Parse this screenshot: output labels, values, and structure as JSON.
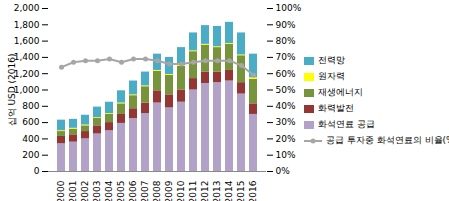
{
  "chart_data": {
    "type": "bar",
    "stacked": true,
    "legend": "right",
    "y_label": "십억 USD (2016)",
    "categories": [
      "2000",
      "2001",
      "2002",
      "2003",
      "2004",
      "2005",
      "2006",
      "2007",
      "2008",
      "2009",
      "2010",
      "2011",
      "2012",
      "2013",
      "2014",
      "2015",
      "2016"
    ],
    "ylim": [
      0,
      2000
    ],
    "yticks": [
      0,
      200,
      400,
      600,
      800,
      {
        "value": 1000,
        "label": "1,000"
      },
      {
        "value": 1200,
        "label": "1,200"
      },
      {
        "value": 1400,
        "label": "1,400"
      },
      {
        "value": 1600,
        "label": "1,600"
      },
      {
        "value": 1800,
        "label": "1,800"
      },
      {
        "value": 2000,
        "label": "2,000"
      }
    ],
    "y2lim": [
      0,
      100
    ],
    "y2ticks": [
      {
        "value": 0,
        "label": "0%"
      },
      {
        "value": 10,
        "label": "10%"
      },
      {
        "value": 20,
        "label": "20%"
      },
      {
        "value": 30,
        "label": "30%"
      },
      {
        "value": 40,
        "label": "40%"
      },
      {
        "value": 50,
        "label": "50%"
      },
      {
        "value": 60,
        "label": "60%"
      },
      {
        "value": 70,
        "label": "70%"
      },
      {
        "value": 80,
        "label": "80%"
      },
      {
        "value": 90,
        "label": "90%"
      },
      {
        "value": 100,
        "label": "100%"
      }
    ],
    "series": [
      {
        "name": "화석연료 공급",
        "type": "bar",
        "color": "#b3a2c7",
        "values": [
          340,
          360,
          400,
          460,
          500,
          590,
          650,
          710,
          840,
          780,
          850,
          1000,
          1080,
          1090,
          1110,
          950,
          700
        ]
      },
      {
        "name": "화력발전",
        "type": "bar",
        "color": "#943634",
        "values": [
          90,
          90,
          90,
          100,
          100,
          110,
          120,
          130,
          150,
          160,
          150,
          140,
          140,
          130,
          130,
          140,
          130
        ]
      },
      {
        "name": "재생에너지",
        "type": "bar",
        "color": "#77933c",
        "values": [
          60,
          70,
          70,
          90,
          100,
          130,
          160,
          200,
          240,
          240,
          290,
          330,
          330,
          300,
          320,
          330,
          300
        ]
      },
      {
        "name": "원자력",
        "type": "bar",
        "color": "#ffff00",
        "values": [
          10,
          10,
          10,
          10,
          10,
          10,
          10,
          10,
          10,
          10,
          10,
          10,
          10,
          10,
          10,
          10,
          20
        ]
      },
      {
        "name": "전력망",
        "type": "bar",
        "color": "#4bacc6",
        "values": [
          130,
          110,
          120,
          130,
          140,
          150,
          170,
          170,
          200,
          210,
          220,
          220,
          230,
          250,
          260,
          270,
          290
        ]
      },
      {
        "name": "공급 투자중 화석연료의 비율(%)",
        "type": "line",
        "axis": "y2",
        "color": "#a6a6a6",
        "marker": "circle",
        "values": [
          64,
          67,
          68,
          68,
          69,
          67,
          69,
          69,
          68,
          66,
          66,
          67,
          68,
          68,
          68,
          65,
          59
        ]
      }
    ]
  }
}
